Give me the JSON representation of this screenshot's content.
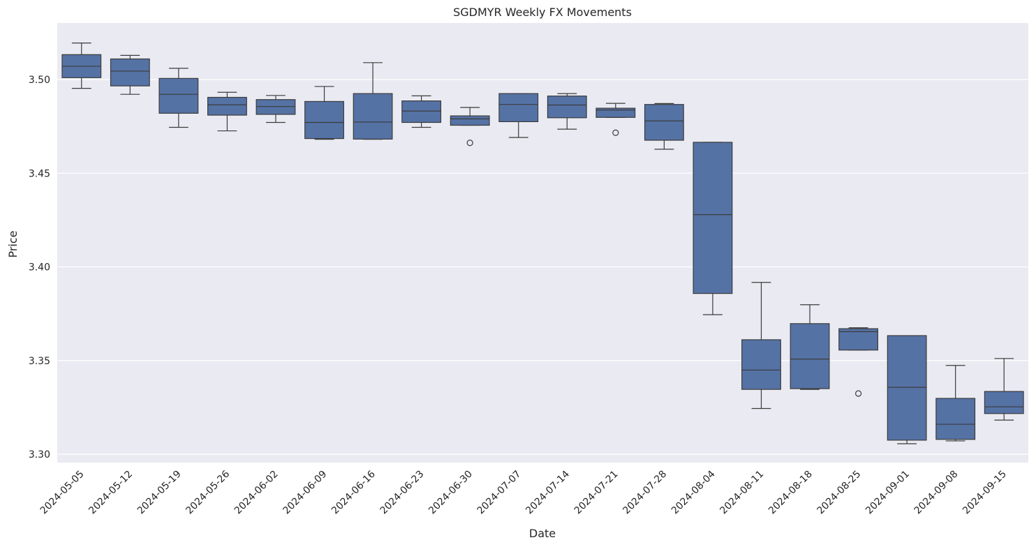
{
  "chart_data": {
    "type": "box",
    "title": "SGDMYR Weekly FX Movements",
    "xlabel": "Date",
    "ylabel": "Price",
    "ylim": [
      3.295,
      3.5285
    ],
    "y_ticks": [
      3.3,
      3.35,
      3.4,
      3.45,
      3.5
    ],
    "y_tick_labels": [
      "3.30",
      "3.35",
      "3.40",
      "3.45",
      "3.50"
    ],
    "grid": true,
    "box_color": "#5572a5",
    "line_color": "#3b3b3b",
    "background_color": "#eaeaf2",
    "grid_color": "#ffffff",
    "categories": [
      "2024-05-05",
      "2024-05-12",
      "2024-05-19",
      "2024-05-26",
      "2024-06-02",
      "2024-06-09",
      "2024-06-16",
      "2024-06-23",
      "2024-06-30",
      "2024-07-07",
      "2024-07-14",
      "2024-07-21",
      "2024-07-28",
      "2024-08-04",
      "2024-08-11",
      "2024-08-18",
      "2024-08-25",
      "2024-09-01",
      "2024-09-08",
      "2024-09-15"
    ],
    "boxes": [
      {
        "whislo": 3.4953,
        "q1": 3.501,
        "med": 3.5071,
        "q3": 3.5133,
        "whishi": 3.5195,
        "fliers": []
      },
      {
        "whislo": 3.4921,
        "q1": 3.4966,
        "med": 3.5045,
        "q3": 3.511,
        "whishi": 3.5129,
        "fliers": []
      },
      {
        "whislo": 3.4745,
        "q1": 3.482,
        "med": 3.4921,
        "q3": 3.5006,
        "whishi": 3.506,
        "fliers": []
      },
      {
        "whislo": 3.4726,
        "q1": 3.481,
        "med": 3.4865,
        "q3": 3.4905,
        "whishi": 3.4932,
        "fliers": []
      },
      {
        "whislo": 3.4771,
        "q1": 3.4814,
        "med": 3.4856,
        "q3": 3.4893,
        "whishi": 3.4915,
        "fliers": []
      },
      {
        "whislo": 3.4681,
        "q1": 3.4685,
        "med": 3.4771,
        "q3": 3.4883,
        "whishi": 3.4963,
        "fliers": []
      },
      {
        "whislo": 3.4681,
        "q1": 3.4682,
        "med": 3.4773,
        "q3": 3.4925,
        "whishi": 3.509,
        "fliers": []
      },
      {
        "whislo": 3.4745,
        "q1": 3.4771,
        "med": 3.4832,
        "q3": 3.4886,
        "whishi": 3.4913,
        "fliers": []
      },
      {
        "whislo": 3.4756,
        "q1": 3.4756,
        "med": 3.479,
        "q3": 3.4806,
        "whishi": 3.4851,
        "fliers": [
          3.4662
        ]
      },
      {
        "whislo": 3.4691,
        "q1": 3.4775,
        "med": 3.4867,
        "q3": 3.4925,
        "whishi": 3.4925,
        "fliers": []
      },
      {
        "whislo": 3.4735,
        "q1": 3.4796,
        "med": 3.4864,
        "q3": 3.4912,
        "whishi": 3.4925,
        "fliers": []
      },
      {
        "whislo": 3.4798,
        "q1": 3.4798,
        "med": 3.4837,
        "q3": 3.4847,
        "whishi": 3.4873,
        "fliers": [
          3.4716
        ]
      },
      {
        "whislo": 3.4628,
        "q1": 3.4676,
        "med": 3.4779,
        "q3": 3.4867,
        "whishi": 3.4872,
        "fliers": []
      },
      {
        "whislo": 3.3745,
        "q1": 3.3858,
        "med": 3.4279,
        "q3": 3.4665,
        "whishi": 3.4665,
        "fliers": []
      },
      {
        "whislo": 3.3244,
        "q1": 3.3346,
        "med": 3.3449,
        "q3": 3.3611,
        "whishi": 3.3917,
        "fliers": []
      },
      {
        "whislo": 3.3346,
        "q1": 3.335,
        "med": 3.3508,
        "q3": 3.3697,
        "whishi": 3.3798,
        "fliers": []
      },
      {
        "whislo": 3.3556,
        "q1": 3.3556,
        "med": 3.3654,
        "q3": 3.367,
        "whishi": 3.3675,
        "fliers": [
          3.3324
        ]
      },
      {
        "whislo": 3.3056,
        "q1": 3.3075,
        "med": 3.3357,
        "q3": 3.3633,
        "whishi": 3.3633,
        "fliers": []
      },
      {
        "whislo": 3.3071,
        "q1": 3.3079,
        "med": 3.316,
        "q3": 3.3298,
        "whishi": 3.3474,
        "fliers": []
      },
      {
        "whislo": 3.3182,
        "q1": 3.3217,
        "med": 3.3253,
        "q3": 3.3335,
        "whishi": 3.3511,
        "fliers": []
      }
    ]
  }
}
